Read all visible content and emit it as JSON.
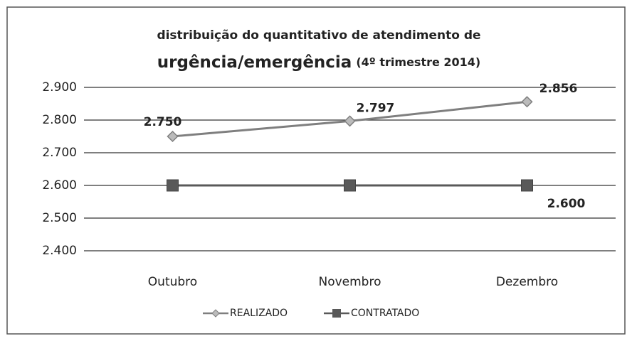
{
  "chart_data": {
    "type": "line",
    "title": [
      "distribuição do quantitativo de atendimento de",
      "urgência/emergência",
      "(4º trimestre 2014)"
    ],
    "categories": [
      "Outubro",
      "Novembro",
      "Dezembro"
    ],
    "series": [
      {
        "name": "REALIZADO",
        "color": "#7f7f7f",
        "marker": "diamond",
        "values": [
          2750,
          2797,
          2856
        ],
        "value_labels": [
          "2.750",
          "2.797",
          "2.856"
        ]
      },
      {
        "name": "CONTRATADO",
        "color": "#595959",
        "marker": "square",
        "values": [
          2600,
          2600,
          2600
        ],
        "value_labels": [
          null,
          null,
          "2.600"
        ]
      }
    ],
    "ylim": [
      2400,
      2900
    ],
    "yticks": [
      {
        "value": 2400,
        "label": "2.400"
      },
      {
        "value": 2500,
        "label": "2.500"
      },
      {
        "value": 2600,
        "label": "2.600"
      },
      {
        "value": 2700,
        "label": "2.700"
      },
      {
        "value": 2800,
        "label": "2.800"
      },
      {
        "value": 2900,
        "label": "2.900"
      }
    ],
    "grid": true,
    "legend": "bottom"
  }
}
